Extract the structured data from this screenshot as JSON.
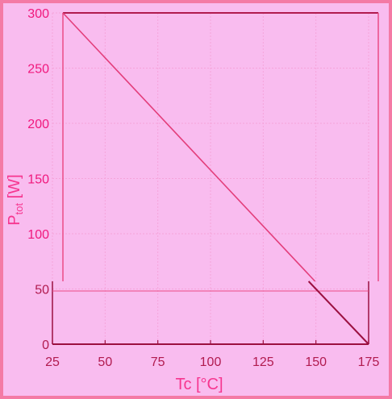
{
  "chart_data": {
    "type": "line",
    "title": "",
    "xlabel": "Tc [°C]",
    "ylabel": "Ptot [W]",
    "ylabel_main": "P",
    "ylabel_sub": "tot",
    "ylabel_unit": "[W]",
    "xlim": [
      25,
      175
    ],
    "ylim": [
      0,
      300
    ],
    "x_ticks": [
      "25",
      "50",
      "75",
      "100",
      "125",
      "150",
      "175"
    ],
    "y_ticks": [
      "0",
      "50",
      "100",
      "150",
      "200",
      "250",
      "300"
    ],
    "series": [
      {
        "x": [
          25,
          175
        ],
        "y": [
          300,
          0
        ]
      }
    ],
    "grid": true,
    "colors": {
      "background": "#f9bcef",
      "line_upper": "#e33e7b",
      "line_lower": "#9b1040",
      "grid": "#f5a4da",
      "tick_label": "#f0187c",
      "border": "#f47aa5"
    }
  }
}
